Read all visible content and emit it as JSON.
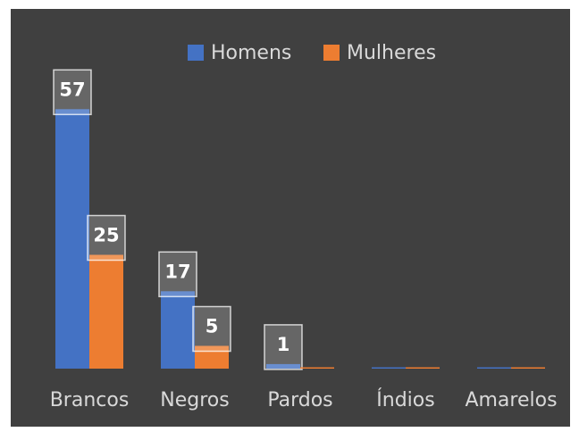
{
  "chart_data": {
    "type": "bar",
    "categories": [
      "Brancos",
      "Negros",
      "Pardos",
      "Índios",
      "Amarelos"
    ],
    "series": [
      {
        "name": "Homens",
        "color": "#4472c4",
        "values": [
          57,
          17,
          1,
          0,
          0
        ]
      },
      {
        "name": "Mulheres",
        "color": "#ed7d31",
        "values": [
          25,
          5,
          0,
          0,
          0
        ]
      }
    ],
    "ylim": [
      0,
      60
    ],
    "legend": "top"
  }
}
